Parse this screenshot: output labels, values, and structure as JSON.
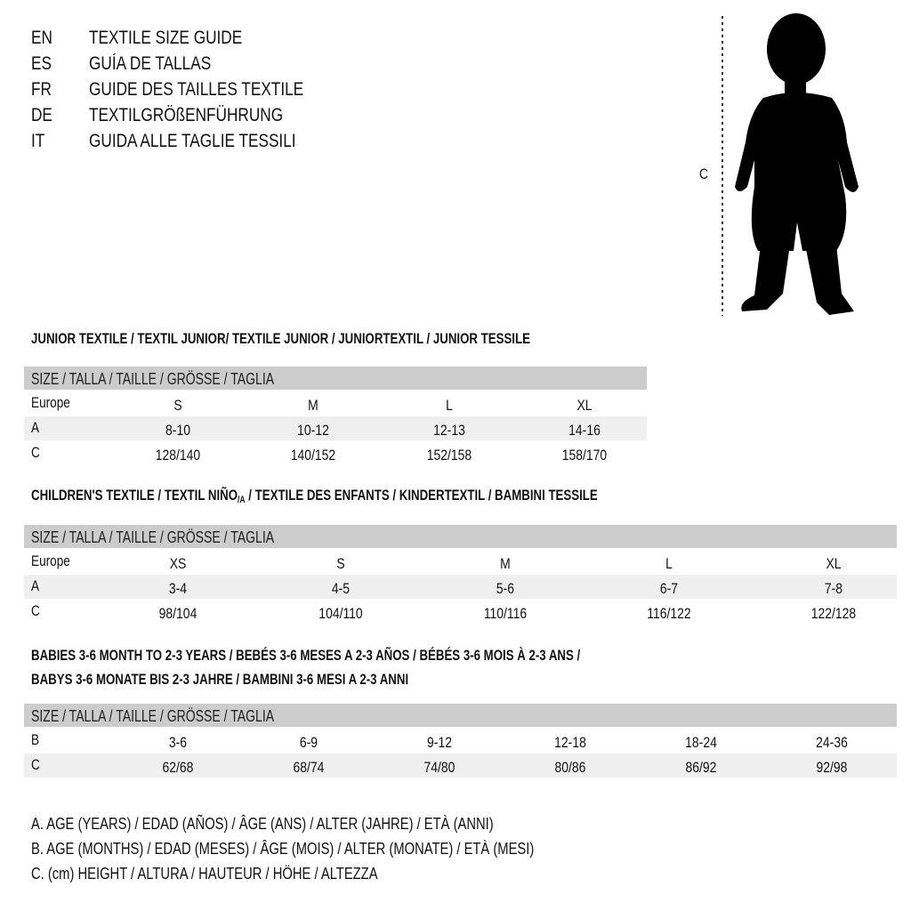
{
  "languages": [
    {
      "code": "EN",
      "title": "TEXTILE SIZE GUIDE"
    },
    {
      "code": "ES",
      "title": "GUÍA DE TALLAS"
    },
    {
      "code": "FR",
      "title": "GUIDE DES TAILLES TEXTILE"
    },
    {
      "code": "DE",
      "title": "TEXTILGRÖßENFÜHRUNG"
    },
    {
      "code": "IT",
      "title": "GUIDA ALLE TAGLIE TESSILI"
    }
  ],
  "figure": {
    "measure_label": "C",
    "icon": "child-silhouette-icon"
  },
  "size_header": "SIZE / TALLA / TAILLE / GRÖSSE / TAGLIA",
  "junior": {
    "heading": "JUNIOR TEXTILE / TEXTIL JUNIOR/ TEXTILE JUNIOR / JUNIORTEXTIL / JUNIOR TESSILE",
    "rows": [
      {
        "label": "Europe",
        "values": [
          "S",
          "M",
          "L",
          "XL"
        ]
      },
      {
        "label": "A",
        "values": [
          "8-10",
          "10-12",
          "12-13",
          "14-16"
        ]
      },
      {
        "label": "C",
        "values": [
          "128/140",
          "140/152",
          "152/158",
          "158/170"
        ]
      }
    ]
  },
  "children": {
    "heading_pre": "CHILDREN'S TEXTILE / TEXTIL NIÑO",
    "heading_sub": "/A",
    "heading_post": " / TEXTILE DES ENFANTS / KINDERTEXTIL / BAMBINI TESSILE",
    "rows": [
      {
        "label": "Europe",
        "values": [
          "XS",
          "S",
          "M",
          "L",
          "XL"
        ]
      },
      {
        "label": "A",
        "values": [
          "3-4",
          "4-5",
          "5-6",
          "6-7",
          "7-8"
        ]
      },
      {
        "label": "C",
        "values": [
          "98/104",
          "104/110",
          "110/116",
          "116/122",
          "122/128"
        ]
      }
    ]
  },
  "babies": {
    "heading_line1": "BABIES 3-6 MONTH TO 2-3 YEARS / BEBÉS 3-6 MESES A 2-3 AÑOS / BÉBÉS 3-6 MOIS À 2-3 ANS /",
    "heading_line2": "BABYS 3-6 MONATE BIS 2-3 JAHRE / BAMBINI 3-6 MESI A 2-3 ANNI",
    "rows": [
      {
        "label": "B",
        "values": [
          "3-6",
          "6-9",
          "9-12",
          "12-18",
          "18-24",
          "24-36"
        ]
      },
      {
        "label": "C",
        "values": [
          "62/68",
          "68/74",
          "74/80",
          "80/86",
          "86/92",
          "92/98"
        ]
      }
    ]
  },
  "legend": [
    "A. AGE (YEARS) / EDAD (AÑOS) / ÂGE (ANS) / ALTER (JAHRE) / ETÀ (ANNI)",
    "B. AGE (MONTHS) / EDAD (MESES) / ÂGE (MOIS) / ALTER (MONATE) / ETÀ (MESI)",
    "C. (cm) HEIGHT / ALTURA / HAUTEUR / HÖHE / ALTEZZA"
  ],
  "colors": {
    "header_bar": "#cccccc",
    "stripe": "#efefef",
    "text": "#111111"
  }
}
